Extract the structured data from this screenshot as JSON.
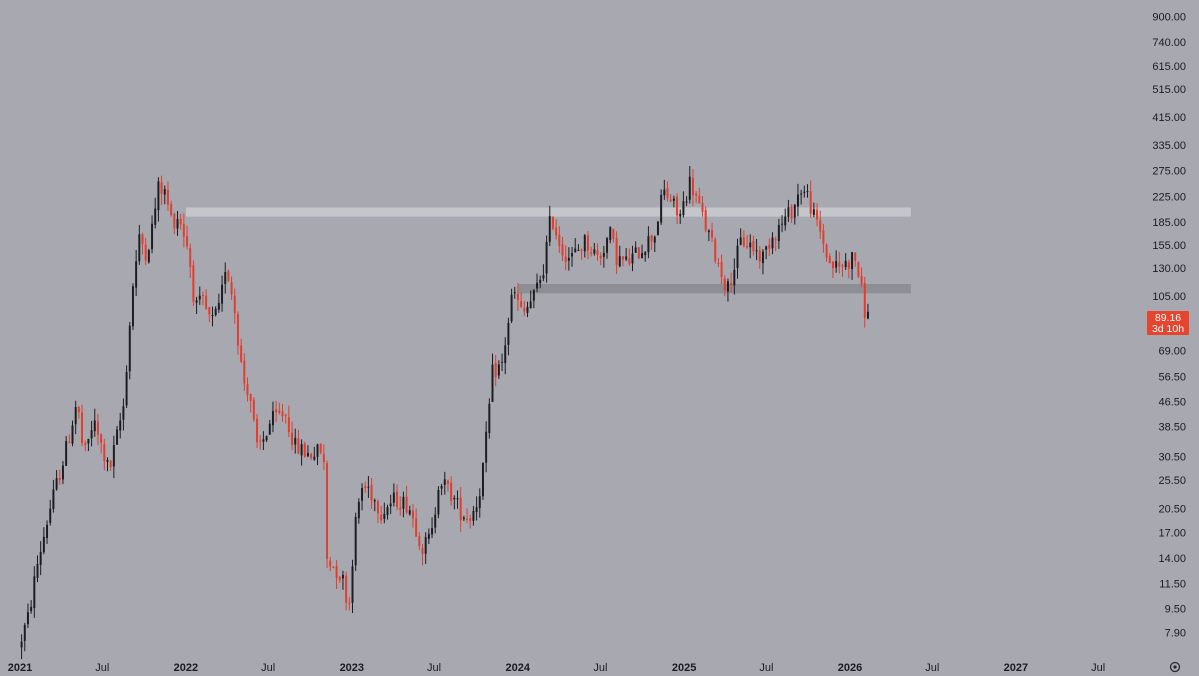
{
  "chart_data": {
    "type": "candlestick",
    "scale": "log",
    "xlim": [
      "2021-01-01",
      "2027-10-01"
    ],
    "ylim": [
      7.0,
      960.0
    ],
    "y_ticks": [
      "900.00",
      "740.00",
      "615.00",
      "515.00",
      "415.00",
      "335.00",
      "275.00",
      "225.00",
      "185.00",
      "155.00",
      "130.00",
      "105.00",
      "69.00",
      "56.50",
      "46.50",
      "38.50",
      "30.50",
      "25.50",
      "20.50",
      "17.00",
      "14.00",
      "11.50",
      "9.50",
      "7.90"
    ],
    "x_ticks": [
      {
        "label": "2021",
        "date": "2021-01-01",
        "year": true
      },
      {
        "label": "Jul",
        "date": "2021-07-01",
        "year": false
      },
      {
        "label": "2022",
        "date": "2022-01-01",
        "year": true
      },
      {
        "label": "Jul",
        "date": "2022-07-01",
        "year": false
      },
      {
        "label": "2023",
        "date": "2023-01-01",
        "year": true
      },
      {
        "label": "Jul",
        "date": "2023-07-01",
        "year": false
      },
      {
        "label": "2024",
        "date": "2024-01-01",
        "year": true
      },
      {
        "label": "Jul",
        "date": "2024-07-01",
        "year": false
      },
      {
        "label": "2025",
        "date": "2025-01-01",
        "year": true
      },
      {
        "label": "Jul",
        "date": "2025-07-01",
        "year": false
      },
      {
        "label": "2026",
        "date": "2026-01-01",
        "year": true
      },
      {
        "label": "Jul",
        "date": "2026-07-01",
        "year": false
      },
      {
        "label": "2027",
        "date": "2027-01-01",
        "year": true
      },
      {
        "label": "Jul",
        "date": "2027-07-01",
        "year": false
      }
    ],
    "zones": [
      {
        "name": "resistance",
        "from": "2022-01-01",
        "to": "2026-05-15",
        "low": 193,
        "high": 207,
        "color": "#c5c6cc"
      },
      {
        "name": "support",
        "from": "2024-01-01",
        "to": "2026-05-15",
        "low": 107,
        "high": 115,
        "color": "#8e8f95"
      }
    ],
    "anchors": [
      [
        "2021-01-01",
        7.0
      ],
      [
        "2021-01-24",
        9.0
      ],
      [
        "2021-02-10",
        13.0
      ],
      [
        "2021-03-10",
        20.0
      ],
      [
        "2021-04-20",
        34.0
      ],
      [
        "2021-05-10",
        47.0
      ],
      [
        "2021-05-25",
        30.0
      ],
      [
        "2021-06-15",
        40.0
      ],
      [
        "2021-07-20",
        27.0
      ],
      [
        "2021-08-20",
        45.0
      ],
      [
        "2021-09-10",
        115.0
      ],
      [
        "2021-09-25",
        165.0
      ],
      [
        "2021-10-10",
        145.0
      ],
      [
        "2021-10-20",
        170.0
      ],
      [
        "2021-11-06",
        245.0
      ],
      [
        "2021-11-20",
        230.0
      ],
      [
        "2021-12-05",
        185.0
      ],
      [
        "2021-12-20",
        195.0
      ],
      [
        "2022-01-10",
        150.0
      ],
      [
        "2022-01-25",
        95.0
      ],
      [
        "2022-02-10",
        100.0
      ],
      [
        "2022-03-01",
        85.0
      ],
      [
        "2022-03-20",
        95.0
      ],
      [
        "2022-04-02",
        135.0
      ],
      [
        "2022-04-20",
        100.0
      ],
      [
        "2022-05-10",
        55.0
      ],
      [
        "2022-05-25",
        50.0
      ],
      [
        "2022-06-10",
        32.0
      ],
      [
        "2022-06-25",
        35.0
      ],
      [
        "2022-07-10",
        40.0
      ],
      [
        "2022-08-10",
        43.0
      ],
      [
        "2022-09-01",
        33.0
      ],
      [
        "2022-10-01",
        31.0
      ],
      [
        "2022-11-03",
        32.0
      ],
      [
        "2022-11-10",
        14.0
      ],
      [
        "2022-12-15",
        12.0
      ],
      [
        "2022-12-29",
        9.5
      ],
      [
        "2023-01-10",
        17.0
      ],
      [
        "2023-01-25",
        24.0
      ],
      [
        "2023-02-10",
        24.0
      ],
      [
        "2023-03-10",
        20.0
      ],
      [
        "2023-04-10",
        22.0
      ],
      [
        "2023-05-10",
        21.0
      ],
      [
        "2023-06-10",
        15.0
      ],
      [
        "2023-07-01",
        17.0
      ],
      [
        "2023-07-15",
        26.0
      ],
      [
        "2023-08-10",
        23.0
      ],
      [
        "2023-09-01",
        20.0
      ],
      [
        "2023-09-20",
        19.0
      ],
      [
        "2023-10-10",
        22.0
      ],
      [
        "2023-10-25",
        32.0
      ],
      [
        "2023-11-10",
        58.0
      ],
      [
        "2023-12-01",
        62.0
      ],
      [
        "2023-12-25",
        110.0
      ],
      [
        "2024-01-15",
        90.0
      ],
      [
        "2024-02-10",
        105.0
      ],
      [
        "2024-03-01",
        130.0
      ],
      [
        "2024-03-18",
        195.0
      ],
      [
        "2024-04-10",
        150.0
      ],
      [
        "2024-05-01",
        140.0
      ],
      [
        "2024-06-01",
        160.0
      ],
      [
        "2024-07-01",
        140.0
      ],
      [
        "2024-07-25",
        170.0
      ],
      [
        "2024-08-10",
        140.0
      ],
      [
        "2024-09-01",
        135.0
      ],
      [
        "2024-10-01",
        150.0
      ],
      [
        "2024-11-01",
        170.0
      ],
      [
        "2024-11-20",
        235.0
      ],
      [
        "2024-12-10",
        215.0
      ],
      [
        "2024-12-25",
        190.0
      ],
      [
        "2025-01-18",
        255.0
      ],
      [
        "2025-02-10",
        200.0
      ],
      [
        "2025-03-01",
        165.0
      ],
      [
        "2025-04-01",
        120.0
      ],
      [
        "2025-04-10",
        110.0
      ],
      [
        "2025-05-10",
        160.0
      ],
      [
        "2025-06-01",
        155.0
      ],
      [
        "2025-06-25",
        140.0
      ],
      [
        "2025-07-15",
        165.0
      ],
      [
        "2025-08-10",
        185.0
      ],
      [
        "2025-09-01",
        205.0
      ],
      [
        "2025-09-18",
        240.0
      ],
      [
        "2025-10-05",
        225.0
      ],
      [
        "2025-10-15",
        195.0
      ],
      [
        "2025-11-01",
        170.0
      ],
      [
        "2025-11-20",
        135.0
      ],
      [
        "2025-12-10",
        130.0
      ],
      [
        "2026-01-05",
        138.0
      ],
      [
        "2026-01-15",
        142.0
      ],
      [
        "2026-01-25",
        120.0
      ],
      [
        "2026-02-05",
        95.0
      ],
      [
        "2026-02-12",
        89.16
      ]
    ],
    "last_price": "89.16",
    "countdown": "3d 10h",
    "up_color": "#1b1c20",
    "down_color": "#e03d2e",
    "badge_color": "#e5452f"
  }
}
